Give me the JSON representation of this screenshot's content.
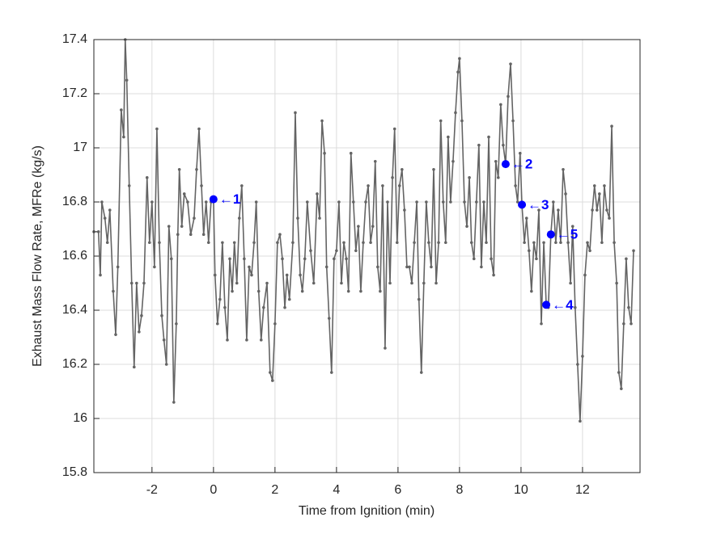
{
  "chart_data": {
    "type": "line",
    "xlabel": "Time from Ignition (min)",
    "ylabel": "Exhaust Mass Flow Rate, MFRe (kg/s)",
    "xlim": [
      -3.89,
      13.87
    ],
    "ylim": [
      15.8,
      17.4
    ],
    "xticks": [
      -2,
      0,
      2,
      4,
      6,
      8,
      10,
      12
    ],
    "yticks": [
      15.8,
      16,
      16.2,
      16.4,
      16.6,
      16.8,
      17,
      17.2,
      17.4
    ],
    "grid": true,
    "series": [
      {
        "color": "#646464",
        "x": [
          -3.89,
          -3.74,
          -3.68,
          -3.63,
          -3.53,
          -3.45,
          -3.37,
          -3.26,
          -3.18,
          -3.11,
          -3.0,
          -2.92,
          -2.87,
          -2.82,
          -2.74,
          -2.66,
          -2.58,
          -2.5,
          -2.42,
          -2.34,
          -2.26,
          -2.16,
          -2.08,
          -2.0,
          -1.92,
          -1.84,
          -1.76,
          -1.68,
          -1.61,
          -1.53,
          -1.45,
          -1.37,
          -1.29,
          -1.21,
          -1.16,
          -1.11,
          -1.03,
          -0.95,
          -0.84,
          -0.74,
          -0.63,
          -0.55,
          -0.47,
          -0.39,
          -0.32,
          -0.24,
          -0.16,
          -0.08,
          0,
          0.05,
          0.13,
          0.21,
          0.29,
          0.37,
          0.45,
          0.53,
          0.61,
          0.68,
          0.76,
          0.84,
          0.92,
          1.0,
          1.08,
          1.16,
          1.24,
          1.32,
          1.39,
          1.47,
          1.55,
          1.63,
          1.74,
          1.84,
          1.92,
          2.0,
          2.08,
          2.16,
          2.24,
          2.32,
          2.39,
          2.47,
          2.58,
          2.66,
          2.74,
          2.82,
          2.89,
          2.97,
          3.05,
          3.16,
          3.26,
          3.37,
          3.45,
          3.53,
          3.61,
          3.68,
          3.76,
          3.84,
          3.92,
          4.0,
          4.08,
          4.16,
          4.24,
          4.32,
          4.39,
          4.47,
          4.55,
          4.63,
          4.71,
          4.79,
          4.87,
          4.95,
          5.03,
          5.11,
          5.18,
          5.26,
          5.34,
          5.42,
          5.5,
          5.58,
          5.66,
          5.74,
          5.82,
          5.89,
          5.97,
          6.05,
          6.13,
          6.21,
          6.29,
          6.37,
          6.45,
          6.53,
          6.61,
          6.68,
          6.76,
          6.84,
          6.92,
          7.0,
          7.08,
          7.16,
          7.24,
          7.32,
          7.39,
          7.47,
          7.55,
          7.63,
          7.71,
          7.79,
          7.87,
          7.95,
          8.0,
          8.08,
          8.16,
          8.24,
          8.32,
          8.39,
          8.47,
          8.55,
          8.63,
          8.71,
          8.79,
          8.87,
          8.95,
          9.03,
          9.11,
          9.18,
          9.26,
          9.34,
          9.42,
          9.5,
          9.58,
          9.66,
          9.74,
          9.82,
          9.89,
          9.97,
          10.03,
          10.11,
          10.18,
          10.26,
          10.34,
          10.42,
          10.5,
          10.58,
          10.66,
          10.74,
          10.82,
          10.89,
          10.97,
          11.05,
          11.13,
          11.21,
          11.29,
          11.37,
          11.45,
          11.53,
          11.61,
          11.68,
          11.76,
          11.84,
          11.92,
          12.0,
          12.08,
          12.16,
          12.24,
          12.32,
          12.39,
          12.47,
          12.55,
          12.63,
          12.71,
          12.79,
          12.87,
          12.95,
          13.03,
          13.11,
          13.18,
          13.26,
          13.34,
          13.42,
          13.5,
          13.58,
          13.66
        ],
        "values": [
          16.69,
          16.69,
          16.53,
          16.8,
          16.74,
          16.65,
          16.77,
          16.47,
          16.31,
          16.56,
          17.14,
          17.04,
          17.4,
          17.25,
          16.86,
          16.5,
          16.19,
          16.5,
          16.32,
          16.38,
          16.5,
          16.89,
          16.65,
          16.8,
          16.56,
          17.07,
          16.65,
          16.38,
          16.29,
          16.2,
          16.71,
          16.59,
          16.06,
          16.35,
          16.68,
          16.92,
          16.71,
          16.83,
          16.8,
          16.68,
          16.74,
          16.92,
          17.07,
          16.86,
          16.68,
          16.8,
          16.65,
          16.8,
          16.81,
          16.53,
          16.35,
          16.44,
          16.65,
          16.41,
          16.29,
          16.59,
          16.47,
          16.65,
          16.5,
          16.74,
          16.86,
          16.59,
          16.29,
          16.56,
          16.53,
          16.65,
          16.8,
          16.47,
          16.29,
          16.41,
          16.5,
          16.17,
          16.14,
          16.35,
          16.65,
          16.68,
          16.59,
          16.41,
          16.53,
          16.44,
          16.65,
          17.13,
          16.74,
          16.53,
          16.47,
          16.59,
          16.8,
          16.62,
          16.5,
          16.83,
          16.74,
          17.1,
          16.98,
          16.56,
          16.37,
          16.17,
          16.59,
          16.62,
          16.8,
          16.5,
          16.65,
          16.59,
          16.47,
          16.98,
          16.8,
          16.62,
          16.71,
          16.47,
          16.65,
          16.8,
          16.86,
          16.65,
          16.71,
          16.95,
          16.56,
          16.47,
          16.86,
          16.26,
          16.8,
          16.5,
          16.89,
          17.07,
          16.65,
          16.86,
          16.92,
          16.77,
          16.56,
          16.56,
          16.5,
          16.65,
          16.8,
          16.44,
          16.17,
          16.5,
          16.8,
          16.65,
          16.56,
          16.92,
          16.5,
          16.65,
          17.1,
          16.8,
          16.65,
          17.04,
          16.8,
          16.95,
          17.13,
          17.28,
          17.33,
          17.1,
          16.8,
          16.71,
          16.89,
          16.65,
          16.59,
          16.8,
          17.01,
          16.56,
          16.8,
          16.65,
          17.04,
          16.59,
          16.53,
          16.95,
          16.89,
          17.16,
          17.01,
          16.94,
          17.19,
          17.31,
          17.1,
          16.86,
          16.8,
          16.98,
          16.79,
          16.65,
          16.74,
          16.62,
          16.47,
          16.65,
          16.59,
          16.77,
          16.35,
          16.65,
          16.42,
          16.41,
          16.68,
          16.8,
          16.65,
          16.77,
          16.65,
          16.92,
          16.83,
          16.65,
          16.5,
          16.71,
          16.41,
          16.2,
          15.99,
          16.23,
          16.53,
          16.65,
          16.62,
          16.77,
          16.86,
          16.77,
          16.83,
          16.65,
          16.86,
          16.77,
          16.74,
          17.08,
          16.65,
          16.5,
          16.17,
          16.11,
          16.35,
          16.59,
          16.41,
          16.35,
          16.62
        ]
      },
      {
        "color": "#0000ff",
        "x": [
          0,
          9.5,
          10.03,
          10.82,
          10.97
        ],
        "values": [
          16.81,
          16.94,
          16.79,
          16.42,
          16.68
        ],
        "labels": [
          "←1",
          "←2",
          "←3",
          "←4",
          "←5"
        ]
      }
    ]
  }
}
